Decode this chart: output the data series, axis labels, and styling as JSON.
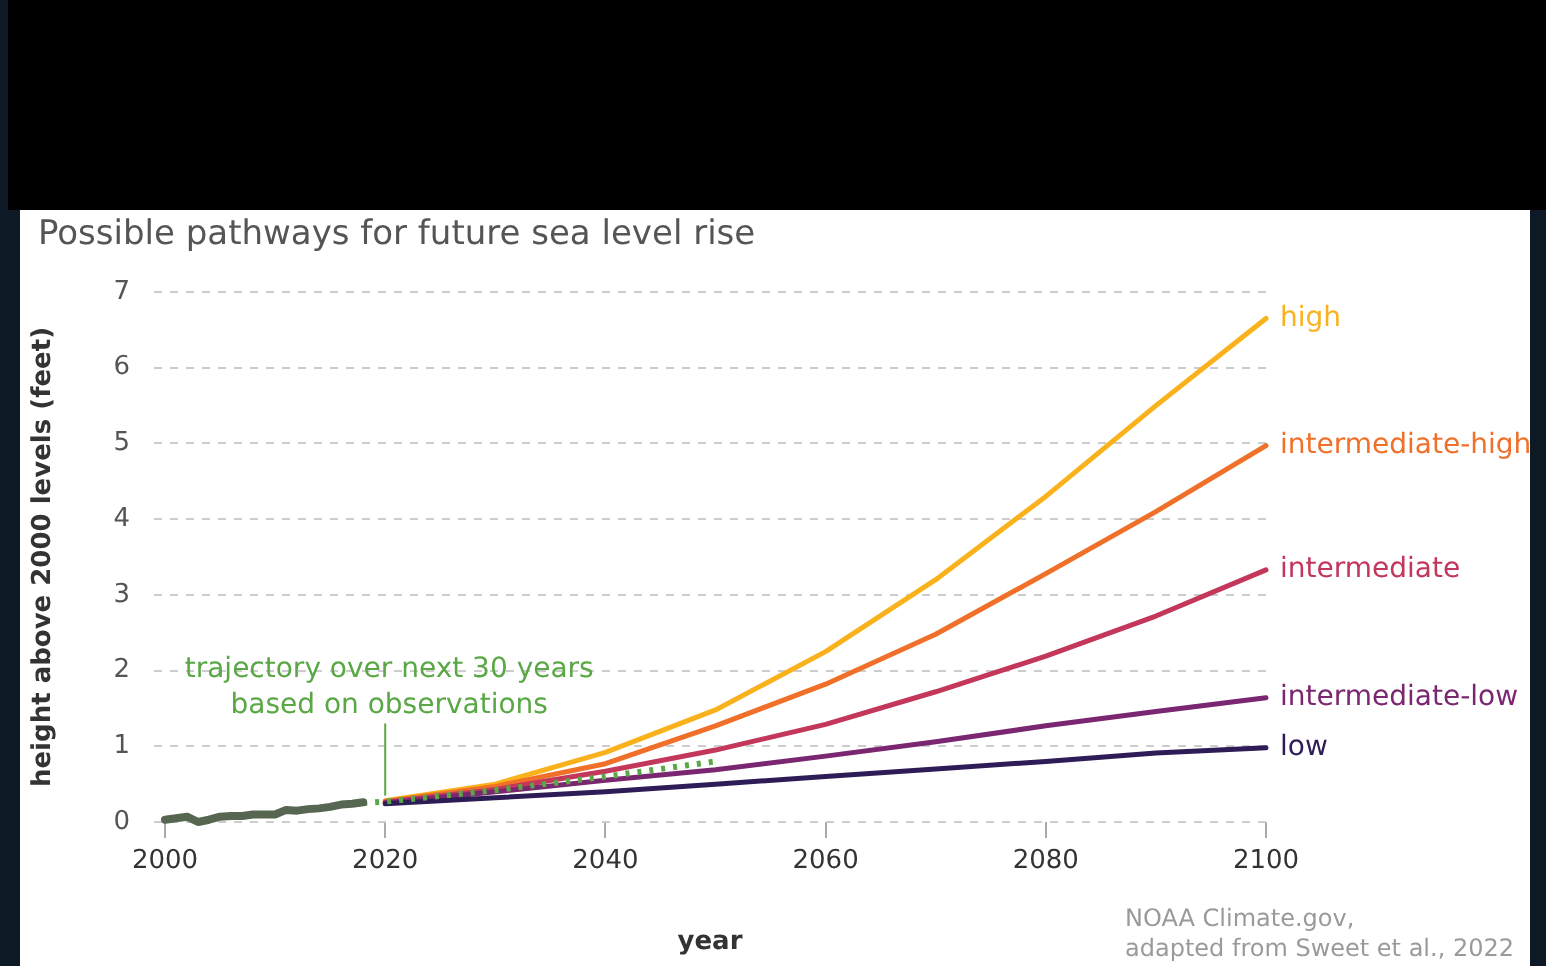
{
  "chart_data": {
    "type": "line",
    "title": "Possible pathways for future sea level rise",
    "xlabel": "year",
    "ylabel": "height above 2000 levels (feet)",
    "xlim": [
      1999,
      2100
    ],
    "xticks": [
      2000,
      2020,
      2040,
      2060,
      2080,
      2100
    ],
    "ylim": [
      0,
      7
    ],
    "yticks": [
      0,
      1,
      2,
      3,
      4,
      5,
      6,
      7
    ],
    "grid": "y",
    "legend": false,
    "marker": "none",
    "series": [
      {
        "color": "#566650",
        "line_style": "solid",
        "x": [
          2000,
          2001,
          2002,
          2003,
          2004,
          2005,
          2006,
          2007,
          2008,
          2009,
          2010,
          2011,
          2012,
          2013,
          2014,
          2015,
          2016,
          2017,
          2018
        ],
        "values": [
          0.03,
          0.05,
          0.07,
          0.0,
          0.03,
          0.07,
          0.08,
          0.08,
          0.1,
          0.1,
          0.1,
          0.16,
          0.15,
          0.17,
          0.18,
          0.2,
          0.23,
          0.24,
          0.26
        ]
      },
      {
        "color": "#5aa845",
        "line_style": "dotted",
        "x": [
          2018,
          2020,
          2030,
          2040,
          2050
        ],
        "values": [
          0.25,
          0.27,
          0.42,
          0.6,
          0.8
        ]
      },
      {
        "name": "low",
        "color": "#2e1c56",
        "line_style": "solid",
        "x": [
          2020,
          2030,
          2040,
          2050,
          2060,
          2070,
          2080,
          2090,
          2100
        ],
        "values": [
          0.24,
          0.32,
          0.4,
          0.5,
          0.6,
          0.7,
          0.8,
          0.91,
          0.98
        ]
      },
      {
        "name": "intermediate-low",
        "color": "#7b2670",
        "line_style": "solid",
        "x": [
          2020,
          2030,
          2040,
          2050,
          2060,
          2070,
          2080,
          2090,
          2100
        ],
        "values": [
          0.25,
          0.4,
          0.55,
          0.69,
          0.87,
          1.06,
          1.27,
          1.46,
          1.64
        ]
      },
      {
        "name": "intermediate",
        "color": "#c2375a",
        "line_style": "solid",
        "x": [
          2020,
          2030,
          2040,
          2050,
          2060,
          2070,
          2080,
          2090,
          2100
        ],
        "values": [
          0.26,
          0.43,
          0.67,
          0.95,
          1.29,
          1.72,
          2.19,
          2.72,
          3.33
        ]
      },
      {
        "name": "intermediate-high",
        "color": "#f0702a",
        "line_style": "solid",
        "x": [
          2020,
          2030,
          2040,
          2050,
          2060,
          2070,
          2080,
          2090,
          2100
        ],
        "values": [
          0.27,
          0.47,
          0.77,
          1.27,
          1.82,
          2.48,
          3.28,
          4.1,
          4.97
        ]
      },
      {
        "name": "high",
        "color": "#f9b21c",
        "line_style": "solid",
        "x": [
          2020,
          2030,
          2040,
          2050,
          2060,
          2070,
          2080,
          2090,
          2100
        ],
        "values": [
          0.28,
          0.5,
          0.92,
          1.48,
          2.25,
          3.2,
          4.3,
          5.5,
          6.65
        ]
      }
    ],
    "annotations": [
      {
        "text": "trajectory over next 30 years\nbased on observations",
        "x": 2020,
        "y": 0.27
      },
      "NOAA Climate.gov,\nadapted from Sweet et al., 2022"
    ]
  }
}
